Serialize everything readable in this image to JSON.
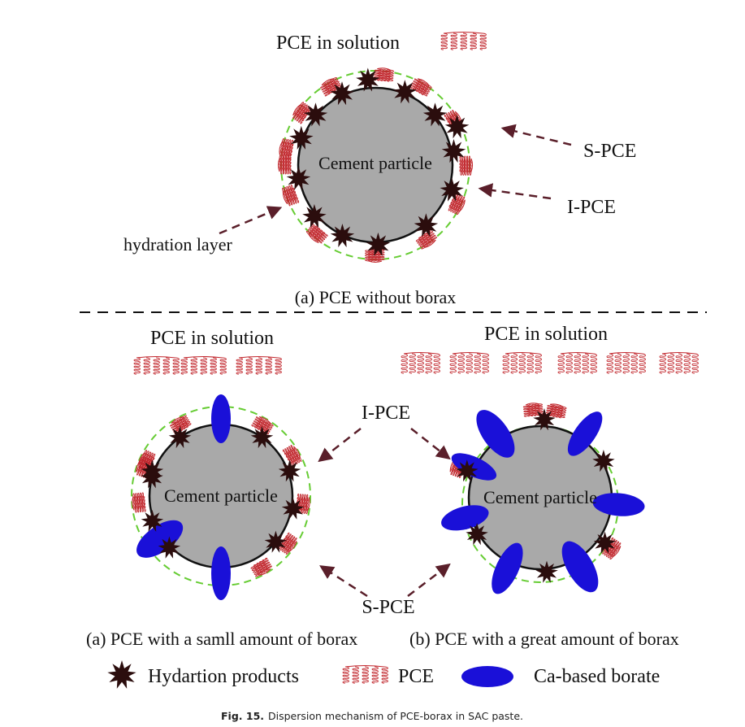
{
  "top": {
    "solution_label": "PCE in solution",
    "particle_label": "Cement particle",
    "s_pce_label": "S-PCE",
    "i_pce_label": "I-PCE",
    "hydration_label": "hydration layer",
    "caption": "(a) PCE without borax"
  },
  "bottom": {
    "left_solution_label": "PCE in solution",
    "right_solution_label": "PCE in solution",
    "left_particle_label": "Cement particle",
    "right_particle_label": "Cement particle",
    "i_pce_label": "I-PCE",
    "s_pce_label": "S-PCE",
    "caption_left": "(a) PCE with a samll amount of borax",
    "caption_right": "(b) PCE with a great amount of borax"
  },
  "legend": {
    "hydration_products": "Hydartion products",
    "pce": "PCE",
    "borate": "Ca-based borate"
  },
  "figure_caption": {
    "number": "Fig. 15.",
    "text": "Dispersion mechanism of PCE-borax in SAC paste."
  },
  "colors": {
    "particle": "#a9a9a9",
    "star": "#2b0d0d",
    "pce": "#c1272d",
    "borate": "#1a10d8",
    "hydration_ring": "#66cc33",
    "arrow": "#5a1f2a"
  }
}
